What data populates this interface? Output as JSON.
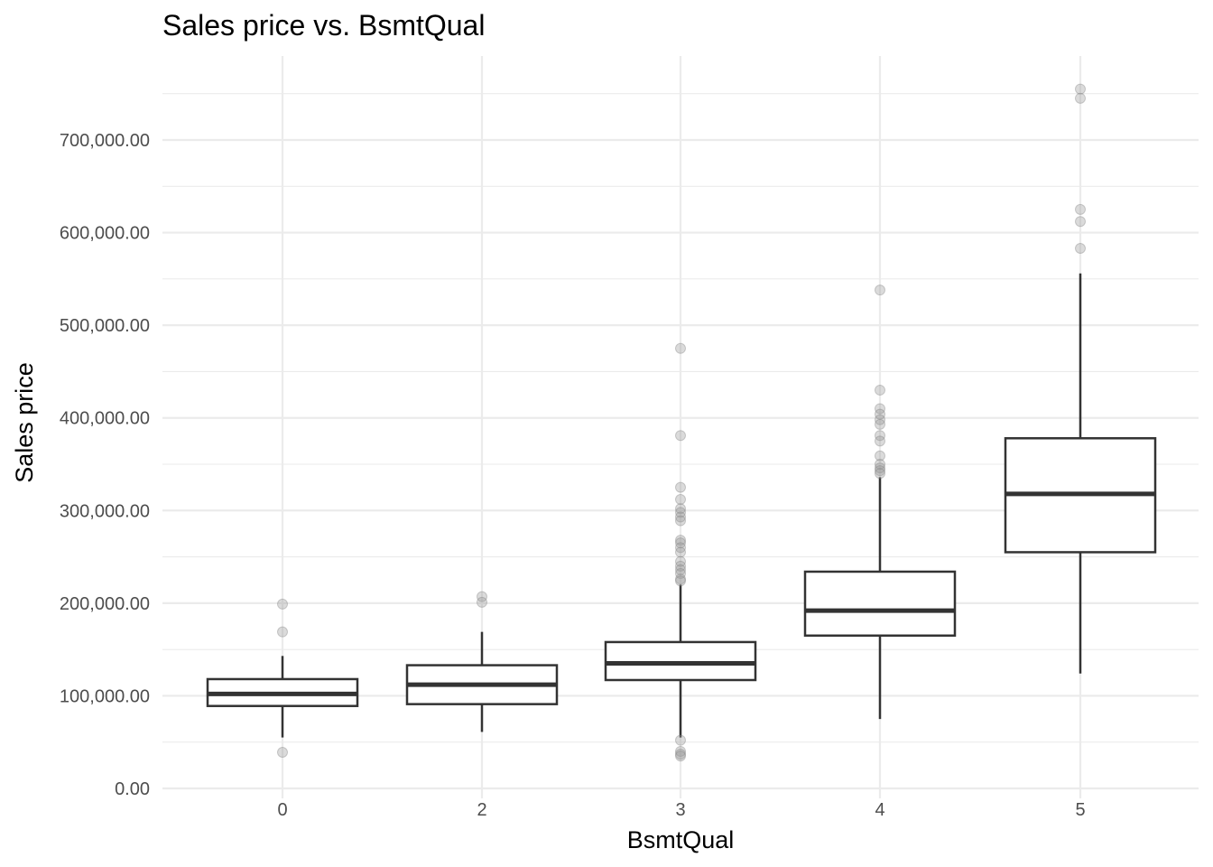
{
  "chart_data": {
    "type": "box",
    "title": "Sales price vs. BsmtQual",
    "xlabel": "BsmtQual",
    "ylabel": "Sales price",
    "categories": [
      "0",
      "2",
      "3",
      "4",
      "5"
    ],
    "ylim": [
      0,
      790000
    ],
    "yticks": [
      0,
      100000,
      200000,
      300000,
      400000,
      500000,
      600000,
      700000
    ],
    "ytick_labels": [
      "0.00",
      "100,000.00",
      "200,000.00",
      "300,000.00",
      "400,000.00",
      "500,000.00",
      "600,000.00",
      "700,000.00"
    ],
    "grid": true,
    "boxes": [
      {
        "category": "0",
        "whisker_low": 55000,
        "q1": 89000,
        "median": 102000,
        "q3": 118000,
        "whisker_high": 143000,
        "outliers": [
          199000,
          169000,
          39000
        ]
      },
      {
        "category": "2",
        "whisker_low": 61000,
        "q1": 91000,
        "median": 112000,
        "q3": 133000,
        "whisker_high": 169000,
        "outliers": [
          207000,
          201000
        ]
      },
      {
        "category": "3",
        "whisker_low": 55000,
        "q1": 117000,
        "median": 135000,
        "q3": 158000,
        "whisker_high": 220000,
        "outliers": [
          475000,
          381000,
          325000,
          312000,
          302000,
          298000,
          293000,
          289000,
          268000,
          265000,
          260000,
          255000,
          245000,
          240000,
          236000,
          232000,
          226000,
          224000,
          52000,
          40000,
          37000,
          35000
        ]
      },
      {
        "category": "4",
        "whisker_low": 75000,
        "q1": 165000,
        "median": 192000,
        "q3": 234000,
        "whisker_high": 336000,
        "outliers": [
          538000,
          430000,
          410000,
          404000,
          398000,
          393000,
          381000,
          375000,
          359000,
          350000,
          346000,
          343000,
          340000
        ]
      },
      {
        "category": "5",
        "whisker_low": 124000,
        "q1": 255000,
        "median": 318000,
        "q3": 378000,
        "whisker_high": 556000,
        "outliers": [
          755000,
          745000,
          625000,
          612000,
          583000
        ]
      }
    ]
  }
}
